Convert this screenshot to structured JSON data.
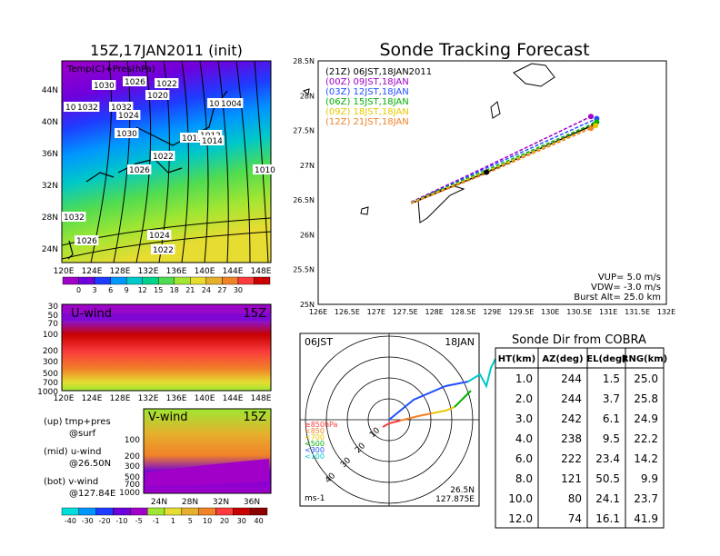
{
  "init_title": "15Z,17JAN2011 (init)",
  "main_title": "Sonde Tracking Forecast",
  "map": {
    "label": "Temp(C)+Pres(hPa)",
    "x_ticks": [
      "120E",
      "124E",
      "128E",
      "132E",
      "136E",
      "140E",
      "144E",
      "148E"
    ],
    "y_ticks": [
      "44N",
      "40N",
      "36N",
      "32N",
      "28N",
      "24N"
    ],
    "isobar_labels": [
      "1030",
      "1026",
      "1022",
      "1030",
      "1020",
      "1032",
      "1032",
      "1024",
      "1030",
      "1022",
      "1016",
      "1012",
      "1014",
      "1026",
      "1006",
      "1004",
      "1010",
      "1032",
      "1026",
      "1024",
      "1022"
    ],
    "colorbar_ticks": [
      "0",
      "3",
      "6",
      "9",
      "12",
      "15",
      "18",
      "21",
      "24",
      "27",
      "30"
    ],
    "colorbar_colors": [
      "#a000c8",
      "#6e00dc",
      "#1e3cff",
      "#0096ff",
      "#00c8c8",
      "#00d28c",
      "#50dc50",
      "#a0e632",
      "#e6dc32",
      "#e6af2d",
      "#f08228",
      "#fa3c3c",
      "#c80000"
    ]
  },
  "uwind": {
    "label": "U-wind",
    "time": "15Z",
    "y_ticks": [
      "30",
      "50",
      "70",
      "100",
      "200",
      "300",
      "500",
      "700",
      "1000"
    ],
    "x_ticks": [
      "120E",
      "124E",
      "128E",
      "132E",
      "136E",
      "140E",
      "144E",
      "148E"
    ]
  },
  "vwind": {
    "label": "V-wind",
    "time": "15Z",
    "y_ticks": [
      "100",
      "200",
      "300",
      "500",
      "700",
      "1000"
    ],
    "x_ticks": [
      "24N",
      "28N",
      "32N",
      "36N"
    ],
    "colorbar_ticks": [
      "-40",
      "-30",
      "-20",
      "-10",
      "-5",
      "-1",
      "1",
      "5",
      "10",
      "20",
      "30",
      "40"
    ],
    "colorbar_colors": [
      "#00dcdc",
      "#0096ff",
      "#1e3cff",
      "#6e00dc",
      "#a000c8",
      "#a0e632",
      "#e6dc32",
      "#e6af2d",
      "#f08228",
      "#fa3c3c",
      "#c80000",
      "#8c0000"
    ]
  },
  "notes": [
    {
      "line1": "(up) tmp+pres",
      "line2": "@surf"
    },
    {
      "line1": "(mid) u-wind",
      "line2": "@26.50N"
    },
    {
      "line1": "(bot) v-wind",
      "line2": "@127.84E"
    }
  ],
  "chart_data": {
    "type": "line",
    "title": "Sonde Tracking Forecast",
    "x_ticks": [
      "126E",
      "126.5E",
      "127E",
      "127.5E",
      "128E",
      "128.5E",
      "129E",
      "129.5E",
      "130E",
      "130.5E",
      "131E",
      "131.5E",
      "132E"
    ],
    "y_ticks": [
      "28.5N",
      "28N",
      "27.5N",
      "27N",
      "26.5N",
      "26N",
      "25.5N",
      "25N"
    ],
    "xlim": [
      126,
      132
    ],
    "ylim": [
      25,
      28.5
    ],
    "series": [
      {
        "name": "(21Z) 06JST,18JAN2011",
        "color": "#000000",
        "x": [
          127.6,
          128.9,
          130.75
        ],
        "y": [
          26.45,
          26.9,
          27.58
        ]
      },
      {
        "name": "(00Z) 09JST,18JAN",
        "color": "#a000c8",
        "x": [
          127.6,
          128.9,
          130.7
        ],
        "y": [
          26.47,
          26.98,
          27.7
        ]
      },
      {
        "name": "(03Z) 12JST,18JAN",
        "color": "#2050ff",
        "x": [
          127.6,
          128.9,
          130.8
        ],
        "y": [
          26.46,
          26.96,
          27.67
        ]
      },
      {
        "name": "(06Z) 15JST,18JAN",
        "color": "#00b000",
        "x": [
          127.6,
          128.9,
          130.8
        ],
        "y": [
          26.46,
          26.93,
          27.62
        ]
      },
      {
        "name": "(09Z) 18JST,18JAN",
        "color": "#e6c800",
        "x": [
          127.6,
          128.9,
          130.78
        ],
        "y": [
          26.46,
          26.91,
          27.57
        ]
      },
      {
        "name": "(12Z) 21JST,18JAN",
        "color": "#f08228",
        "x": [
          127.6,
          128.9,
          130.7
        ],
        "y": [
          26.45,
          26.88,
          27.53
        ]
      }
    ],
    "info": [
      "VUP= 5.0 m/s",
      "VDW= -3.0 m/s",
      "Burst Alt= 25.0 km"
    ]
  },
  "polar": {
    "time_left": "06JST",
    "time_right": "18JAN",
    "ring_labels": [
      "10",
      "20",
      "30",
      "40"
    ],
    "legend": [
      "≥850hPa",
      "<850",
      "<700",
      "<500",
      "<300",
      "<100"
    ],
    "legend_colors": [
      "#fa3c3c",
      "#f08228",
      "#e6c800",
      "#00b000",
      "#2050ff",
      "#00c8c8"
    ],
    "units": "ms-1",
    "lat": "26.5N",
    "lon": "127.875E"
  },
  "sonde_table": {
    "title": "Sonde Dir from COBRA",
    "headers": [
      "HT(km)",
      "AZ(deg)",
      "EL(deg)",
      "RNG(km)"
    ],
    "rows": [
      [
        "1.0",
        "244",
        "1.5",
        "25.0"
      ],
      [
        "2.0",
        "244",
        "3.7",
        "25.8"
      ],
      [
        "3.0",
        "242",
        "6.1",
        "24.9"
      ],
      [
        "4.0",
        "238",
        "9.5",
        "22.2"
      ],
      [
        "6.0",
        "222",
        "23.4",
        "14.2"
      ],
      [
        "8.0",
        "121",
        "50.5",
        "9.9"
      ],
      [
        "10.0",
        "80",
        "24.1",
        "23.7"
      ],
      [
        "12.0",
        "74",
        "16.1",
        "41.9"
      ]
    ]
  }
}
